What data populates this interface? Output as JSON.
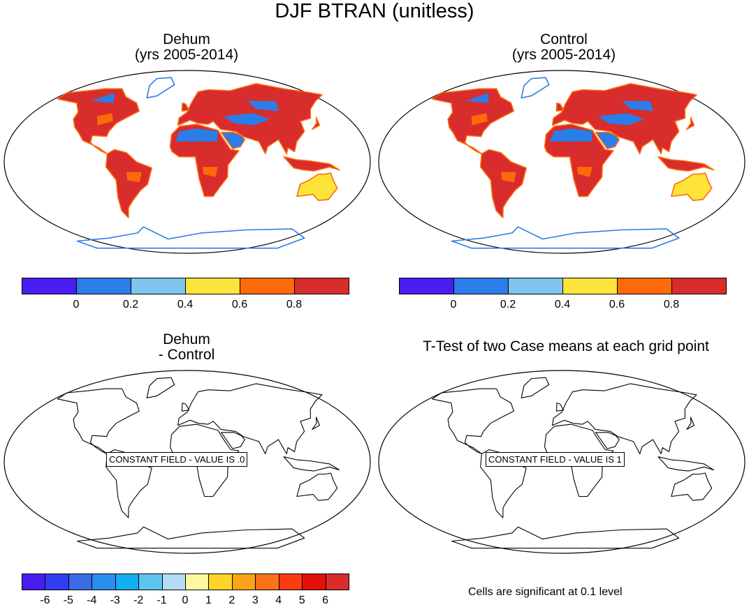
{
  "main_title": "DJF BTRAN (unitless)",
  "panels": [
    {
      "title_line1": "Dehum",
      "title_line2": "(yrs 2005-2014)"
    },
    {
      "title_line1": "Control",
      "title_line2": "(yrs 2005-2014)"
    },
    {
      "title_line1": "Dehum",
      "title_line2": "- Control"
    },
    {
      "title_line1": "T-Test of two Case means at each grid point",
      "title_line2": ""
    }
  ],
  "constant_field_labels": [
    "CONSTANT FIELD - VALUE IS .0",
    "CONSTANT FIELD - VALUE IS 1"
  ],
  "colorbar_top": {
    "colors": [
      "#4a1ef0",
      "#2b7de8",
      "#7ec6ee",
      "#fde33a",
      "#fd6a0a",
      "#d92c2c"
    ],
    "labels": [
      "0",
      "0.2",
      "0.4",
      "0.6",
      "0.8"
    ]
  },
  "colorbar_diff": {
    "colors": [
      "#4b1cf0",
      "#2f3ef0",
      "#3c6be6",
      "#2a8ef0",
      "#12b0f2",
      "#5ec4f0",
      "#b4ddf4",
      "#fdf7a0",
      "#fdd42a",
      "#fda318",
      "#fd7218",
      "#fb3c10",
      "#e6100a",
      "#d92c2c"
    ],
    "labels": [
      "-6",
      "-5",
      "-4",
      "-3",
      "-2",
      "-1",
      "0",
      "1",
      "2",
      "3",
      "4",
      "5",
      "6"
    ]
  },
  "significance_note": "Cells are significant at 0.1 level",
  "colors": {
    "land_dry_blue": "#2b7de8",
    "land_wet_red": "#d92c2c",
    "ocean": "#ffffff",
    "outline": "#000000"
  }
}
